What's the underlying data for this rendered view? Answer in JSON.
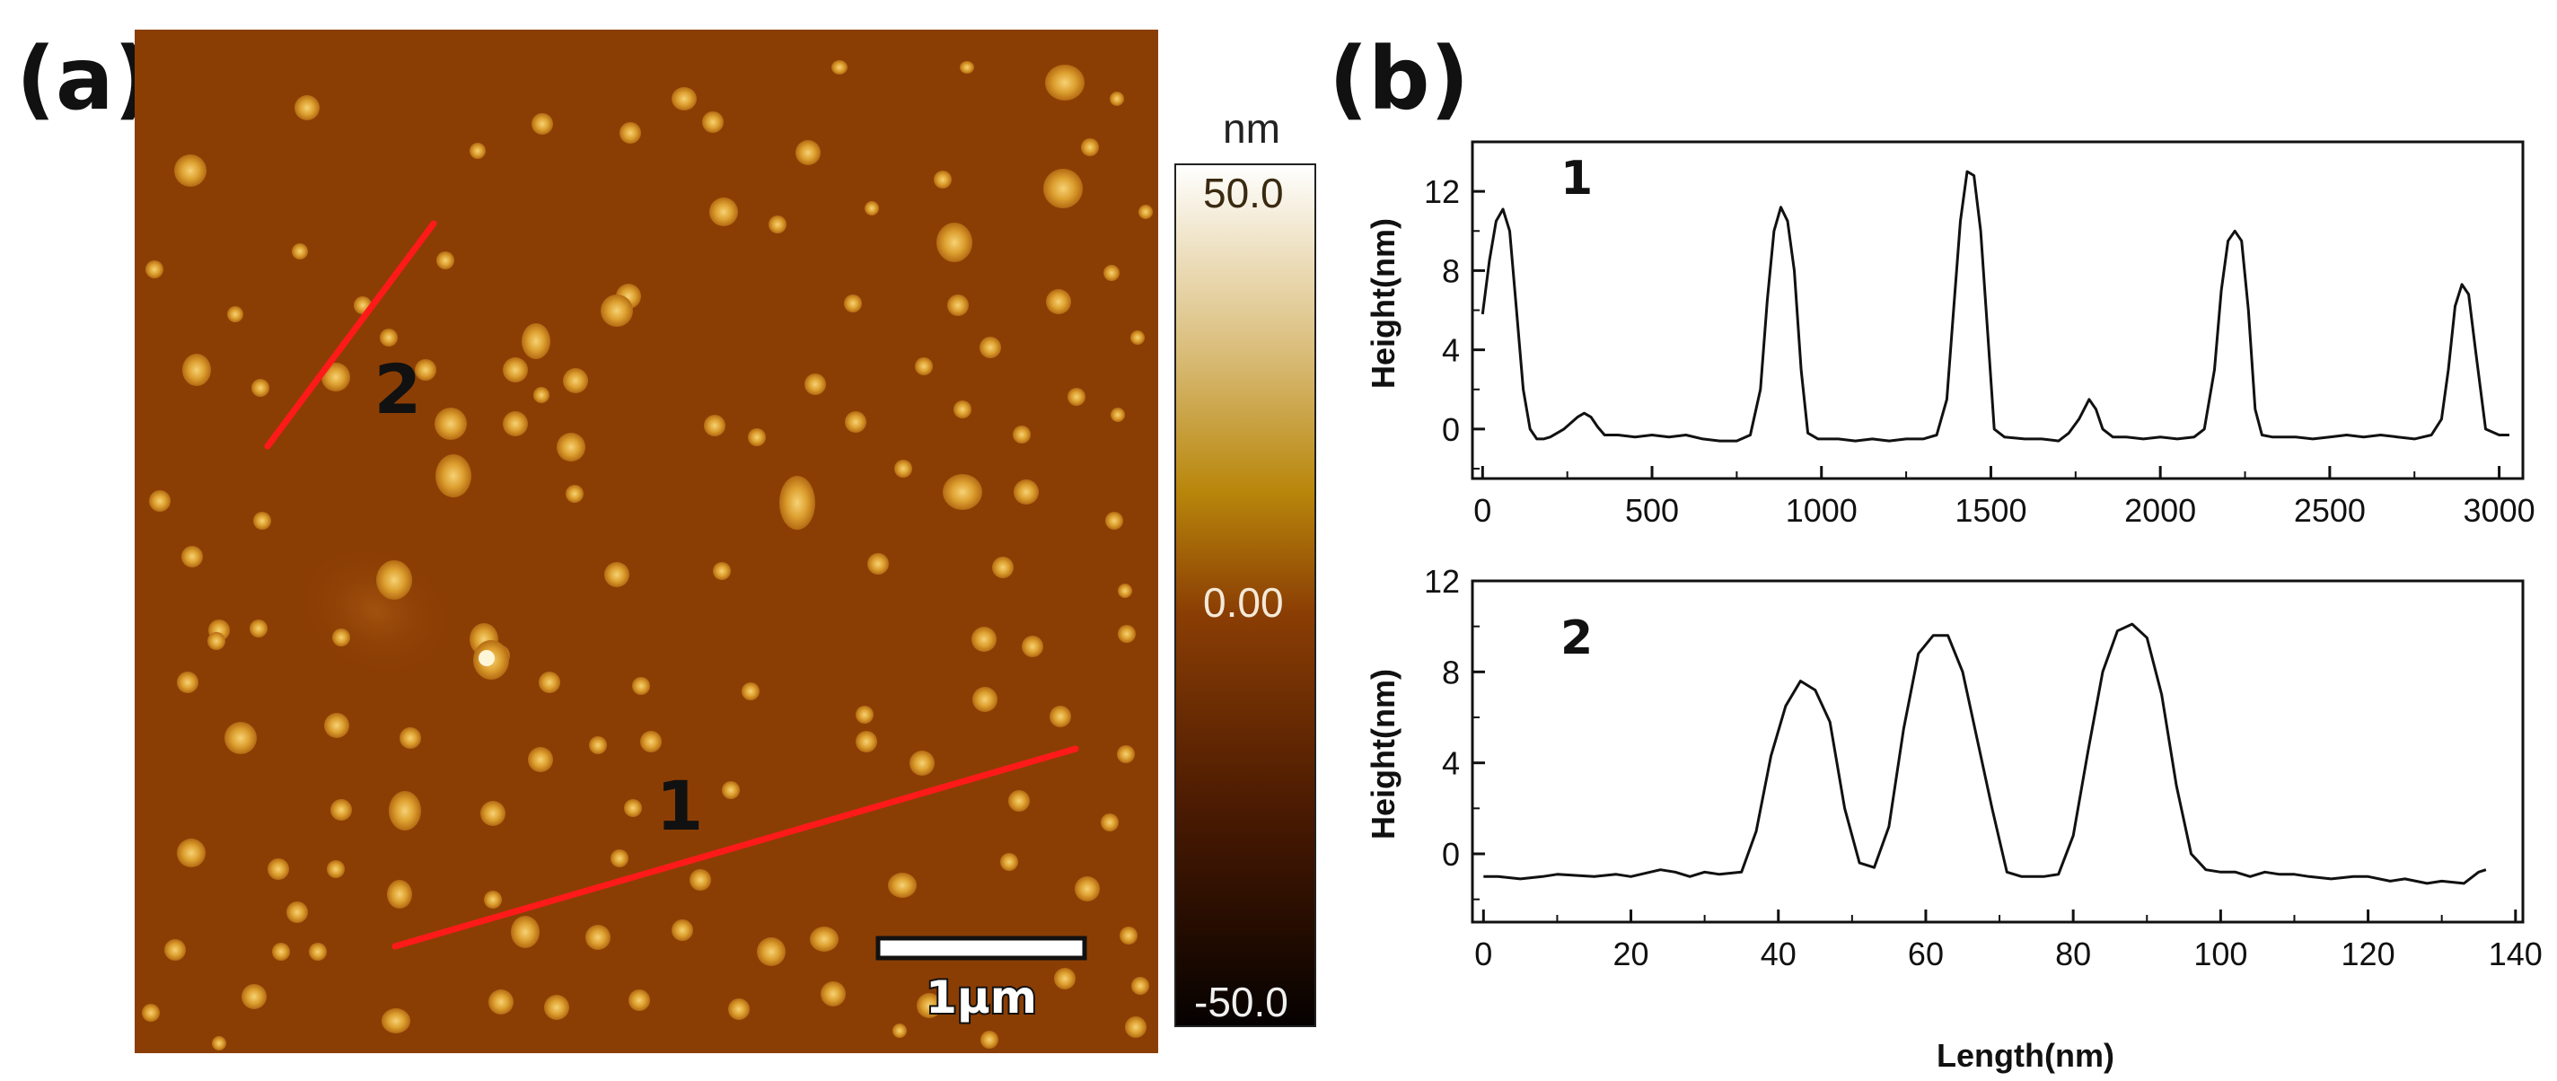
{
  "figure": {
    "panel_a_label": "(a)",
    "panel_b_label": "(b)"
  },
  "afm_image": {
    "line_labels": [
      "1",
      "2"
    ],
    "scale_bar_label": "1μm",
    "colors": {
      "background": "#8B3E04",
      "particle": "#D89A2A",
      "particle_bright": "#F4CF6A",
      "line": "#FF1A1A"
    }
  },
  "colorbar": {
    "unit": "nm",
    "max_label": "50.0",
    "mid_label": "0.00",
    "min_label": "-50.0",
    "colors": [
      "#FFFFFF",
      "#D8B870",
      "#B8860B",
      "#8B3E04",
      "#5A1F02",
      "#0A0200"
    ]
  },
  "chart_data": [
    {
      "type": "line",
      "panel": "1",
      "xlabel": "",
      "ylabel": "Height(nm)",
      "xlim": [
        -30,
        3070
      ],
      "ylim": [
        -2.5,
        14.5
      ],
      "xticks": [
        0,
        500,
        1000,
        1500,
        2000,
        2500,
        3000
      ],
      "yticks": [
        0,
        4,
        8,
        12
      ],
      "x": [
        0,
        20,
        40,
        60,
        80,
        100,
        120,
        140,
        160,
        180,
        200,
        240,
        280,
        300,
        320,
        340,
        360,
        400,
        450,
        500,
        550,
        600,
        650,
        700,
        750,
        790,
        820,
        840,
        860,
        880,
        900,
        920,
        940,
        960,
        990,
        1050,
        1100,
        1150,
        1200,
        1250,
        1300,
        1340,
        1370,
        1390,
        1410,
        1430,
        1450,
        1470,
        1490,
        1510,
        1540,
        1600,
        1650,
        1700,
        1730,
        1760,
        1790,
        1810,
        1830,
        1860,
        1900,
        1950,
        2000,
        2050,
        2100,
        2130,
        2160,
        2180,
        2200,
        2220,
        2240,
        2260,
        2280,
        2300,
        2330,
        2400,
        2450,
        2500,
        2550,
        2600,
        2650,
        2700,
        2750,
        2800,
        2830,
        2850,
        2870,
        2890,
        2910,
        2930,
        2960,
        3000,
        3030
      ],
      "values": [
        5.8,
        8.5,
        10.5,
        11.1,
        10,
        6,
        2,
        0,
        -0.5,
        -0.5,
        -0.4,
        0,
        0.6,
        0.8,
        0.6,
        0.1,
        -0.3,
        -0.3,
        -0.4,
        -0.3,
        -0.4,
        -0.3,
        -0.5,
        -0.6,
        -0.6,
        -0.3,
        2,
        6.5,
        10,
        11.2,
        10.5,
        8,
        3,
        -0.2,
        -0.5,
        -0.5,
        -0.6,
        -0.5,
        -0.6,
        -0.5,
        -0.5,
        -0.3,
        1.5,
        6,
        10.5,
        13,
        12.8,
        10,
        5,
        0,
        -0.4,
        -0.5,
        -0.5,
        -0.6,
        -0.2,
        0.5,
        1.5,
        1,
        0,
        -0.4,
        -0.4,
        -0.5,
        -0.4,
        -0.5,
        -0.4,
        0,
        3,
        7,
        9.5,
        10,
        9.5,
        6,
        1,
        -0.3,
        -0.4,
        -0.4,
        -0.5,
        -0.4,
        -0.3,
        -0.4,
        -0.3,
        -0.4,
        -0.5,
        -0.3,
        0.5,
        3,
        6.2,
        7.3,
        6.8,
        4,
        0,
        -0.3,
        -0.3
      ]
    },
    {
      "type": "line",
      "panel": "2",
      "xlabel": "Length(nm)",
      "ylabel": "Height(nm)",
      "xlim": [
        -1.5,
        141
      ],
      "ylim": [
        -3,
        12
      ],
      "xticks": [
        0,
        20,
        40,
        60,
        80,
        100,
        120,
        140
      ],
      "yticks": [
        0,
        4,
        8,
        12
      ],
      "x": [
        0,
        2,
        5,
        8,
        10,
        15,
        18,
        20,
        24,
        26,
        28,
        30,
        32,
        35,
        37,
        39,
        41,
        43,
        45,
        47,
        49,
        51,
        53,
        55,
        57,
        59,
        61,
        63,
        65,
        67,
        69,
        71,
        73,
        76,
        78,
        80,
        82,
        84,
        86,
        88,
        90,
        92,
        94,
        96,
        98,
        100,
        102,
        104,
        106,
        108,
        110,
        112,
        115,
        118,
        120,
        123,
        125,
        128,
        130,
        133,
        135,
        136
      ],
      "values": [
        -1,
        -1,
        -1.1,
        -1,
        -0.9,
        -1,
        -0.9,
        -1,
        -0.7,
        -0.8,
        -1,
        -0.8,
        -0.9,
        -0.8,
        1,
        4.3,
        6.5,
        7.6,
        7.2,
        5.8,
        2,
        -0.4,
        -0.6,
        1.2,
        5.5,
        8.8,
        9.6,
        9.6,
        8,
        5,
        2,
        -0.8,
        -1,
        -1,
        -0.9,
        0.8,
        4.5,
        8,
        9.8,
        10.1,
        9.5,
        7,
        3,
        0,
        -0.7,
        -0.8,
        -0.8,
        -1,
        -0.8,
        -0.9,
        -0.9,
        -1,
        -1.1,
        -1,
        -1,
        -1.2,
        -1.1,
        -1.3,
        -1.2,
        -1.3,
        -0.8,
        -0.7
      ]
    }
  ]
}
